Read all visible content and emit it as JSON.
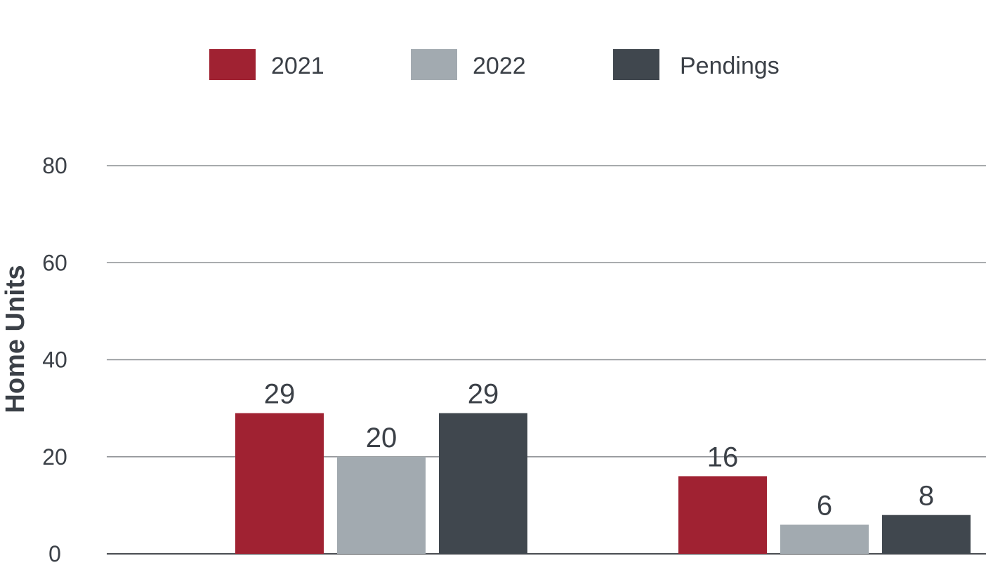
{
  "chart_data": {
    "type": "bar",
    "categories": [
      "",
      ""
    ],
    "series": [
      {
        "name": "2021",
        "color": "#a02232",
        "values": [
          29,
          16
        ]
      },
      {
        "name": "2022",
        "color": "#a2aab0",
        "values": [
          20,
          6
        ]
      },
      {
        "name": "Pendings",
        "color": "#40474e",
        "values": [
          29,
          8
        ]
      }
    ],
    "data_labels": [
      [
        "29",
        "16"
      ],
      [
        "20",
        "6"
      ],
      [
        "29",
        "8"
      ]
    ],
    "ylabel": "Home Units",
    "xlabel": "",
    "ylim": [
      0,
      80
    ],
    "yticks": [
      0,
      20,
      40,
      60,
      80
    ],
    "ytick_labels": [
      "0",
      "20",
      "40",
      "60",
      "80"
    ],
    "grid": true,
    "legend_position": "top"
  }
}
